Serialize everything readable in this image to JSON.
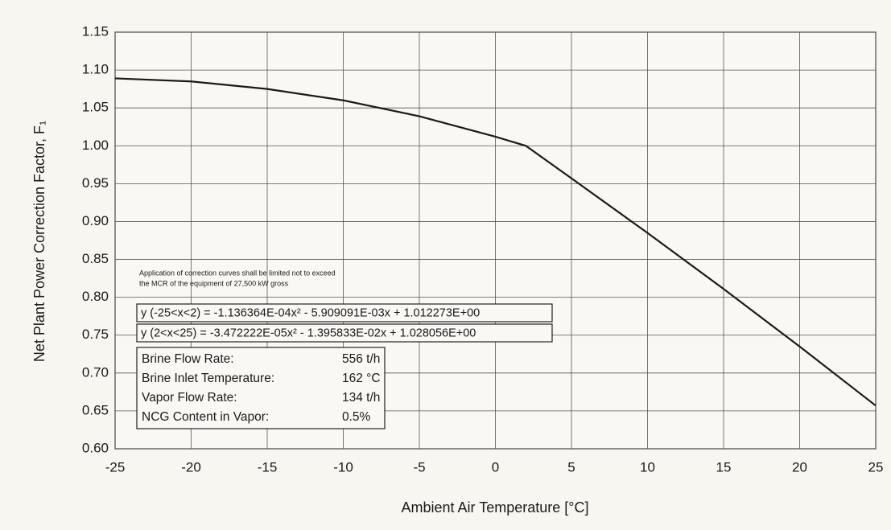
{
  "chart_data": {
    "type": "line",
    "xlabel": "Ambient Air Temperature [°C]",
    "ylabel": "Net Plant Power Correction Factor, F₁",
    "x": [
      -25,
      -20,
      -15,
      -10,
      -5,
      0,
      2,
      5,
      10,
      15,
      20,
      25
    ],
    "values": [
      1.089,
      1.085,
      1.075,
      1.06,
      1.039,
      1.012,
      1.0,
      0.957,
      0.885,
      0.811,
      0.735,
      0.657
    ],
    "color": "#1a1a1a",
    "xlim": [
      -25,
      25
    ],
    "xticks": [
      -25,
      -20,
      -15,
      -10,
      -5,
      0,
      5,
      10,
      15,
      20,
      25
    ],
    "ylim": [
      0.6,
      1.15
    ],
    "yticks": [
      {
        "value": 0.6,
        "label": "0.60"
      },
      0.65,
      {
        "value": 0.7,
        "label": "0.70"
      },
      0.75,
      {
        "value": 0.8,
        "label": "0.80"
      },
      0.85,
      {
        "value": 0.9,
        "label": "0.90"
      },
      0.95,
      {
        "value": 1.0,
        "label": "1.00"
      },
      1.05,
      {
        "value": 1.1,
        "label": "1.10"
      },
      1.15
    ],
    "grid": true,
    "note": [
      "Application of correction curves shall be limited not to exceed",
      "the MCR of the equipment of 27,500 kW gross"
    ],
    "equations": [
      "y (-25<x<2) = -1.136364E-04x² - 5.909091E-03x + 1.012273E+00",
      "y (2<x<25) = -3.472222E-05x² - 1.395833E-02x + 1.028056E+00"
    ],
    "conditions": [
      [
        "Brine Flow Rate:",
        "556 t/h"
      ],
      [
        "Brine Inlet Temperature:",
        "162 °C"
      ],
      [
        "Vapor Flow Rate:",
        "134 t/h"
      ],
      [
        "NCG Content in Vapor:",
        "0.5%"
      ]
    ]
  }
}
